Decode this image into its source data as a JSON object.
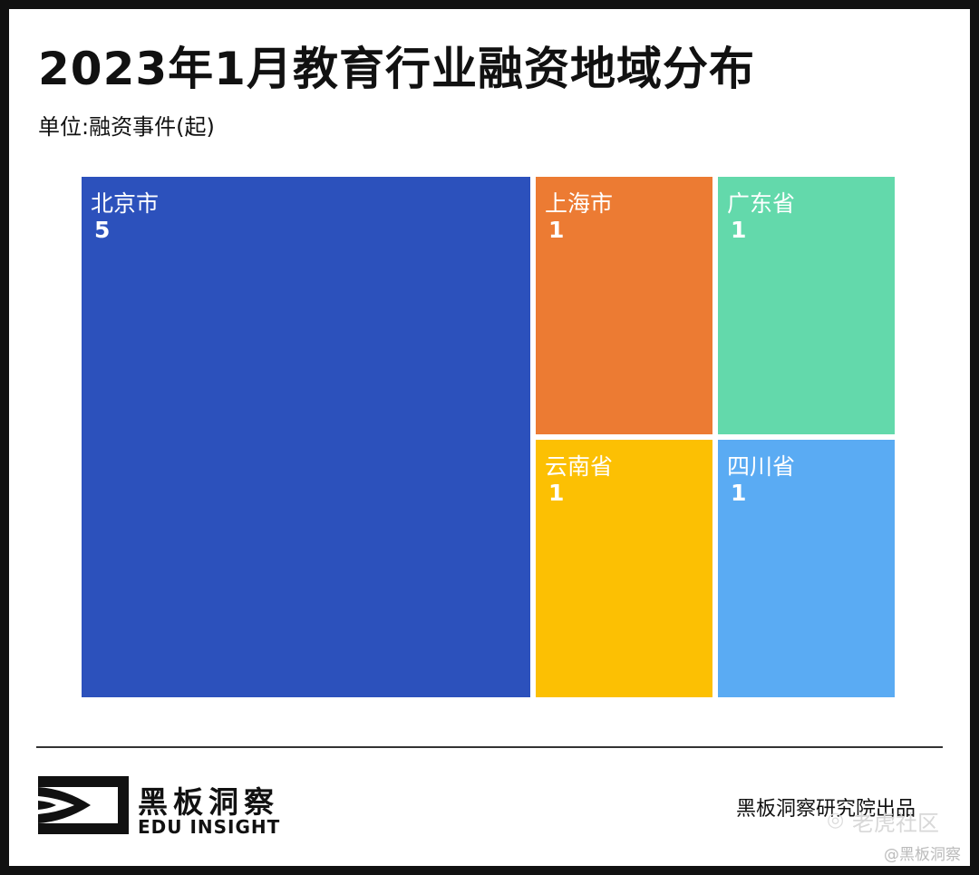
{
  "title": "2023年1月教育行业融资地域分布",
  "unit": "单位:融资事件(起)",
  "chart_data": {
    "type": "treemap",
    "title": "2023年1月教育行业融资地域分布",
    "unit": "单位:融资事件(起)",
    "items": [
      {
        "name": "北京市",
        "value": 5,
        "color": "#2c51bc"
      },
      {
        "name": "上海市",
        "value": 1,
        "color": "#ec7b33"
      },
      {
        "name": "广东省",
        "value": 1,
        "color": "#63d9ab"
      },
      {
        "name": "云南省",
        "value": 1,
        "color": "#fcc003"
      },
      {
        "name": "四川省",
        "value": 1,
        "color": "#5aabf3"
      }
    ]
  },
  "footer": {
    "brand_cn": "黑板洞察",
    "brand_en": "EDU INSIGHT",
    "credit": "黑板洞察研究院出品",
    "watermark": "老虎社区",
    "handle": "@黑板洞察"
  }
}
